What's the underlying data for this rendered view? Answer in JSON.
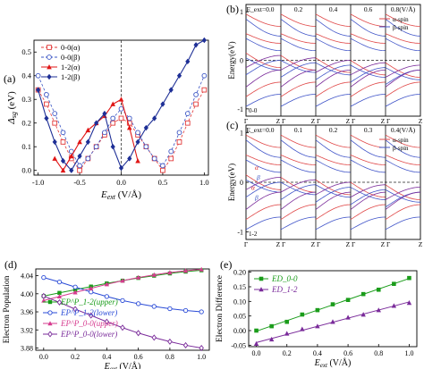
{
  "panels": {
    "a": {
      "label": "(a)"
    },
    "b": {
      "label": "(b)"
    },
    "c": {
      "label": "(c)"
    },
    "d": {
      "label": "(d)"
    },
    "e": {
      "label": "(e)"
    }
  },
  "chart_data": [
    {
      "id": "a",
      "type": "line",
      "xlabel": "E_ext (V/Å)",
      "ylabel": "Δ_sg (eV)",
      "xlim": [
        -1.05,
        1.05
      ],
      "ylim": [
        -0.02,
        0.55
      ],
      "xticks": [
        "-1.0",
        "-0.5",
        "0.0",
        "0.5",
        "1.0"
      ],
      "yticks": [
        "0.0",
        "0.1",
        "0.2",
        "0.3",
        "0.4",
        "0.5"
      ],
      "legend_position": "top-left",
      "annotation": "dashed vertical line at E_ext = 0",
      "series": [
        {
          "name": "0-0(α)",
          "color": "#e23a3a",
          "marker": "open-square",
          "dash": true,
          "x": [
            -1.0,
            -0.9,
            -0.8,
            -0.7,
            -0.6,
            -0.5,
            -0.4,
            -0.3,
            -0.2,
            -0.1,
            0.0,
            0.1,
            0.2,
            0.3,
            0.4,
            0.5,
            0.6,
            0.7,
            0.8,
            0.9,
            1.0
          ],
          "y": [
            0.34,
            0.28,
            0.2,
            0.12,
            0.05,
            0.0,
            0.05,
            0.1,
            0.15,
            0.2,
            0.22,
            0.2,
            0.15,
            0.1,
            0.05,
            0.0,
            0.05,
            0.12,
            0.2,
            0.28,
            0.34
          ]
        },
        {
          "name": "0-0(β)",
          "color": "#3b55c4",
          "marker": "open-circle",
          "dash": true,
          "x": [
            -1.0,
            -0.9,
            -0.8,
            -0.7,
            -0.6,
            -0.5,
            -0.4,
            -0.3,
            -0.2,
            -0.1,
            0.0,
            0.1,
            0.2,
            0.3,
            0.4,
            0.5,
            0.6,
            0.7,
            0.8,
            0.9,
            1.0
          ],
          "y": [
            0.4,
            0.32,
            0.24,
            0.16,
            0.08,
            0.02,
            0.05,
            0.1,
            0.16,
            0.22,
            0.26,
            0.22,
            0.16,
            0.1,
            0.05,
            0.02,
            0.08,
            0.16,
            0.24,
            0.32,
            0.4
          ]
        },
        {
          "name": "1-2(α)",
          "color": "#e01616",
          "marker": "filled-triangle",
          "dash": false,
          "x": [
            -0.8,
            -0.7,
            -0.6,
            -0.5,
            -0.4,
            -0.3,
            -0.2,
            -0.1,
            0.0,
            0.1,
            0.2
          ],
          "y": [
            0.05,
            0.0,
            0.06,
            0.12,
            0.17,
            0.2,
            0.23,
            0.28,
            0.3,
            0.18,
            0.04
          ]
        },
        {
          "name": "1-2(β)",
          "color": "#1e2f96",
          "marker": "filled-diamond",
          "dash": false,
          "x": [
            -1.0,
            -0.9,
            -0.8,
            -0.7,
            -0.6,
            -0.5,
            -0.4,
            -0.3,
            -0.2,
            -0.1,
            0.0,
            0.1,
            0.2,
            0.3,
            0.4,
            0.5,
            0.6,
            0.7,
            0.8,
            0.9,
            1.0
          ],
          "y": [
            0.34,
            0.22,
            0.12,
            0.04,
            0.0,
            0.06,
            0.12,
            0.2,
            0.24,
            0.1,
            0.01,
            0.05,
            0.12,
            0.18,
            0.22,
            0.28,
            0.34,
            0.4,
            0.46,
            0.53,
            0.55
          ]
        }
      ]
    },
    {
      "id": "b",
      "type": "band-structure",
      "ylabel": "Energy(eV)",
      "yticks": [
        "-1",
        "0",
        "1"
      ],
      "field_label": "E_ext=0.0",
      "subpanel_titles": [
        "E_ext=0.0",
        "0.2",
        "0.4",
        "0.6",
        "0.8(V/Å)"
      ],
      "kpoint_labels": [
        "Z Γ",
        "Z Γ",
        "Z Γ",
        "Z Γ",
        "Z"
      ],
      "first_kpoint": "Γ",
      "inset_label": "0-0",
      "legend": [
        "α-spin",
        "β-spin"
      ],
      "legend_position": "top-right"
    },
    {
      "id": "c",
      "type": "band-structure",
      "ylabel": "Energy(eV)",
      "yticks": [
        "-1",
        "0",
        "1"
      ],
      "subpanel_titles": [
        "E_ext=0.0",
        "0.1",
        "0.2",
        "0.3",
        "0.4(V/Å)"
      ],
      "kpoint_labels": [
        "Z Γ",
        "Z Γ",
        "Z Γ",
        "Z Γ",
        "Z"
      ],
      "first_kpoint": "Γ",
      "inset_label": "1-2",
      "band_labels": [
        "α",
        "β",
        "α",
        "β"
      ],
      "legend": [
        "α-spin",
        "β-spin"
      ],
      "legend_position": "top-right"
    },
    {
      "id": "d",
      "type": "line",
      "xlabel": "E_ext (V/Å)",
      "ylabel": "Electron Population",
      "xlim": [
        -0.05,
        1.05
      ],
      "ylim": [
        3.875,
        4.055
      ],
      "xticks": [
        "0.0",
        "0.2",
        "0.4",
        "0.6",
        "0.8",
        "1.0"
      ],
      "yticks": [
        "3.88",
        "3.92",
        "3.96",
        "4.00",
        "4.04"
      ],
      "legend_position": "bottom-left",
      "series": [
        {
          "name": "EP^P_1-2(upper)",
          "color": "#1a9c1a",
          "marker": "filled-square",
          "x": [
            0.0,
            0.1,
            0.2,
            0.3,
            0.4,
            0.5,
            0.6,
            0.7,
            0.8,
            0.9,
            1.0
          ],
          "y": [
            3.995,
            4.002,
            4.009,
            4.016,
            4.023,
            4.029,
            4.035,
            4.04,
            4.045,
            4.049,
            4.052
          ]
        },
        {
          "name": "EP^P_1-2(lower)",
          "color": "#2a4bd7",
          "marker": "open-circle",
          "x": [
            0.0,
            0.1,
            0.2,
            0.3,
            0.4,
            0.5,
            0.6,
            0.7,
            0.8,
            0.9,
            1.0
          ],
          "y": [
            4.036,
            4.026,
            4.015,
            4.004,
            3.994,
            3.985,
            3.978,
            3.972,
            3.967,
            3.963,
            3.96
          ]
        },
        {
          "name": "EP^P_0-0(upper)",
          "color": "#d63b8f",
          "marker": "filled-triangle",
          "x": [
            0.0,
            0.1,
            0.2,
            0.3,
            0.4,
            0.5,
            0.6,
            0.7,
            0.8,
            0.9,
            1.0
          ],
          "y": [
            3.985,
            3.994,
            4.003,
            4.012,
            4.021,
            4.029,
            4.036,
            4.042,
            4.047,
            4.051,
            4.054
          ]
        },
        {
          "name": "EP^P_0-0(lower)",
          "color": "#7a2b9a",
          "marker": "open-diamond",
          "x": [
            0.0,
            0.1,
            0.2,
            0.3,
            0.4,
            0.5,
            0.6,
            0.7,
            0.8,
            0.9,
            1.0
          ],
          "y": [
            3.995,
            3.981,
            3.966,
            3.952,
            3.938,
            3.925,
            3.913,
            3.903,
            3.894,
            3.886,
            3.88
          ]
        }
      ]
    },
    {
      "id": "e",
      "type": "scatter",
      "xlabel": "E_ext (V/Å)",
      "ylabel": "Electron Difference",
      "xlim": [
        -0.05,
        1.05
      ],
      "ylim": [
        -0.055,
        0.205
      ],
      "xticks": [
        "0.0",
        "0.2",
        "0.4",
        "0.6",
        "0.8",
        "1.0"
      ],
      "yticks": [
        "-0.05",
        "0.00",
        "0.05",
        "0.10",
        "0.15",
        "0.20"
      ],
      "legend_position": "top-left",
      "series": [
        {
          "name": "ED_0-0",
          "color": "#1a9c1a",
          "marker": "filled-square",
          "fit": "linear",
          "x": [
            0.0,
            0.1,
            0.2,
            0.3,
            0.4,
            0.5,
            0.6,
            0.7,
            0.8,
            0.9,
            1.0
          ],
          "y": [
            0.0,
            0.015,
            0.03,
            0.055,
            0.07,
            0.09,
            0.105,
            0.125,
            0.14,
            0.16,
            0.18
          ]
        },
        {
          "name": "ED_1-2",
          "color": "#7a2b9a",
          "marker": "filled-triangle",
          "fit": "linear",
          "x": [
            0.0,
            0.1,
            0.2,
            0.3,
            0.4,
            0.5,
            0.6,
            0.7,
            0.8,
            0.9,
            1.0
          ],
          "y": [
            -0.045,
            -0.03,
            -0.01,
            0.005,
            0.015,
            0.03,
            0.045,
            0.055,
            0.07,
            0.085,
            0.095
          ]
        }
      ]
    }
  ]
}
